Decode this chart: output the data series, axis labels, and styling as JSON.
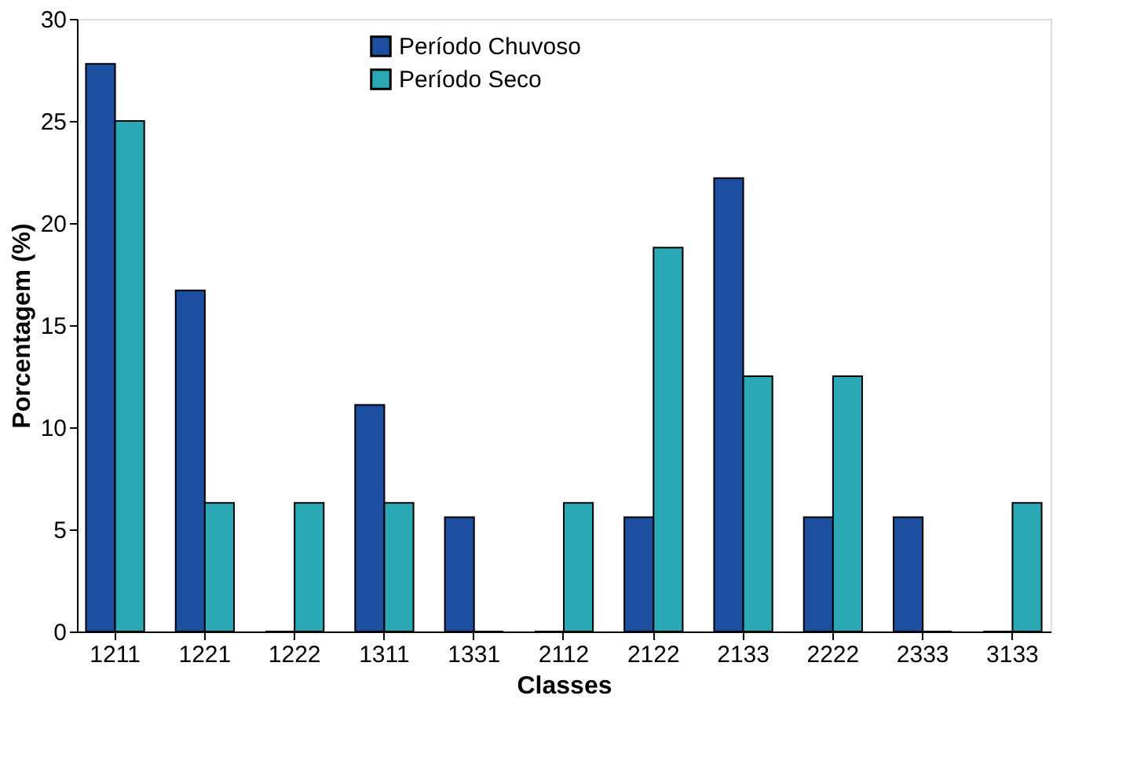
{
  "chart_data": {
    "type": "bar",
    "xlabel": "Classes",
    "ylabel": "Porcentagem (%)",
    "categories": [
      "1211",
      "1221",
      "1222",
      "1311",
      "1331",
      "2112",
      "2122",
      "2133",
      "2222",
      "2333",
      "3133"
    ],
    "series": [
      {
        "name": "Período Chuvoso",
        "color": "#1c4fa0",
        "values": [
          27.8,
          16.7,
          0,
          11.1,
          5.6,
          0,
          5.6,
          22.2,
          5.6,
          5.6,
          0
        ]
      },
      {
        "name": "Período Seco",
        "color": "#2aa8b4",
        "values": [
          25,
          6.3,
          6.3,
          6.3,
          0,
          6.3,
          18.8,
          12.5,
          12.5,
          0,
          6.3
        ]
      }
    ],
    "ylim": [
      0,
      30
    ],
    "yticks": [
      0,
      5,
      10,
      15,
      20,
      25,
      30
    ],
    "grid": false,
    "legend": "top"
  }
}
